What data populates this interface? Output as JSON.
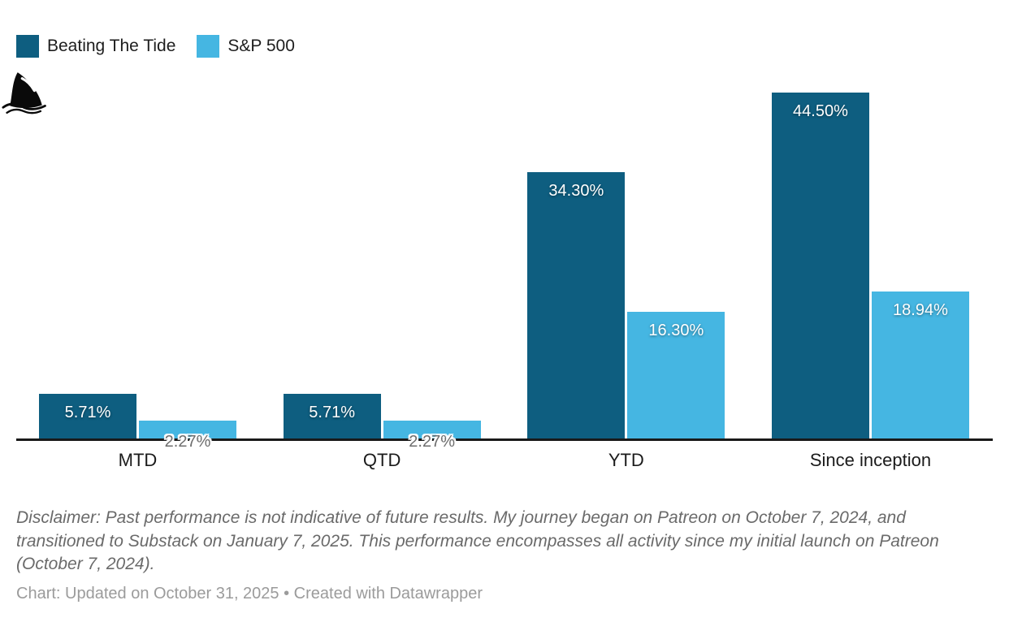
{
  "chart_data": {
    "type": "bar",
    "categories": [
      "MTD",
      "QTD",
      "YTD",
      "Since inception"
    ],
    "series": [
      {
        "name": "Beating The Tide",
        "color": "#0E5E80",
        "values": [
          5.71,
          5.71,
          34.3,
          44.5
        ],
        "labels": [
          "5.71%",
          "5.71%",
          "34.30%",
          "44.50%"
        ]
      },
      {
        "name": "S&P 500",
        "color": "#45B6E2",
        "values": [
          2.27,
          2.27,
          16.3,
          18.94
        ],
        "labels": [
          "2.27%",
          "2.27%",
          "16.30%",
          "18.94%"
        ]
      }
    ],
    "title": "",
    "xlabel": "",
    "ylabel": "",
    "ylim": [
      0,
      44.5
    ],
    "grid": false,
    "legend_position": "top-left",
    "axis_color": "#191919",
    "value_suffix": "%"
  },
  "logo": {
    "icon": "shark-fin-icon"
  },
  "notes": {
    "disclaimer": "Disclaimer: Past performance is not indicative of future results. My journey began on Patreon on October 7, 2024, and transitioned to Substack on January 7, 2025. This performance encompasses all activity since my initial launch on Patreon (October 7, 2024).",
    "footer": "Chart: Updated on October 31, 2025 • Created with Datawrapper"
  }
}
